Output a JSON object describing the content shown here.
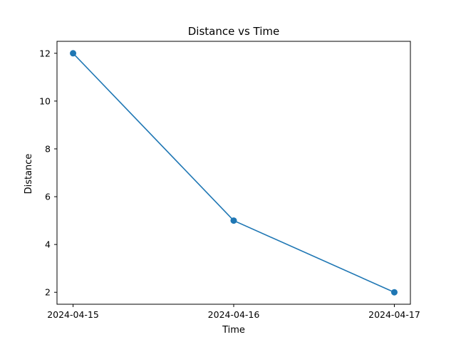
{
  "chart_data": {
    "type": "line",
    "title": "Distance vs Time",
    "xlabel": "Time",
    "ylabel": "Distance",
    "x": [
      "2024-04-15",
      "2024-04-16",
      "2024-04-17"
    ],
    "x_tick_labels": [
      "2024-04-15",
      "2024-04-16",
      "2024-04-17"
    ],
    "y_ticks": [
      "2",
      "4",
      "6",
      "8",
      "10",
      "12"
    ],
    "series": [
      {
        "values": [
          12,
          5,
          2
        ],
        "color": "#1f77b4",
        "marker": "circle"
      }
    ],
    "xlim": [
      "2024-04-14 21:36",
      "2024-04-17 02:24"
    ],
    "ylim": [
      1.5,
      12.5
    ],
    "grid": false,
    "legend": "none"
  }
}
